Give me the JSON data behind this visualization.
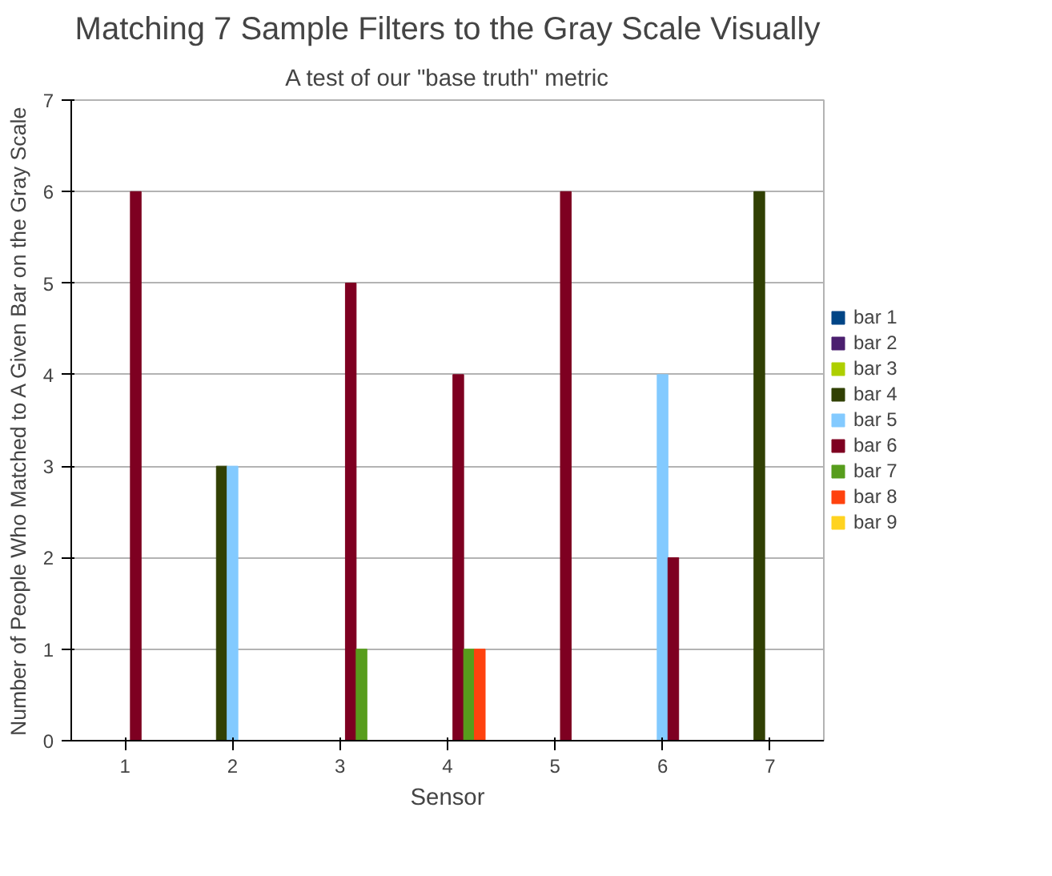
{
  "chart_data": {
    "type": "bar",
    "title": "Matching 7 Sample Filters to the Gray Scale Visually",
    "subtitle": "A test of our \"base truth\" metric",
    "xlabel": "Sensor",
    "ylabel": "Number of People Who Matched to A Given Bar on the Gray Scale",
    "categories": [
      "1",
      "2",
      "3",
      "4",
      "5",
      "6",
      "7"
    ],
    "series": [
      {
        "name": "bar 1",
        "color": "#004586",
        "values": [
          0,
          0,
          0,
          0,
          0,
          0,
          0
        ]
      },
      {
        "name": "bar 2",
        "color": "#4b1f6f",
        "values": [
          0,
          0,
          0,
          0,
          0,
          0,
          0
        ]
      },
      {
        "name": "bar 3",
        "color": "#aecf00",
        "values": [
          0,
          0,
          0,
          0,
          0,
          0,
          0
        ]
      },
      {
        "name": "bar 4",
        "color": "#314004",
        "values": [
          0,
          3,
          0,
          0,
          0,
          0,
          6
        ]
      },
      {
        "name": "bar 5",
        "color": "#83caff",
        "values": [
          0,
          3,
          0,
          0,
          0,
          4,
          0
        ]
      },
      {
        "name": "bar 6",
        "color": "#7e0021",
        "values": [
          6,
          0,
          5,
          4,
          6,
          2,
          0
        ]
      },
      {
        "name": "bar 7",
        "color": "#579d1c",
        "values": [
          0,
          0,
          1,
          1,
          0,
          0,
          0
        ]
      },
      {
        "name": "bar 8",
        "color": "#ff420e",
        "values": [
          0,
          0,
          0,
          1,
          0,
          0,
          0
        ]
      },
      {
        "name": "bar 9",
        "color": "#ffd320",
        "values": [
          0,
          0,
          0,
          0,
          0,
          0,
          0
        ]
      }
    ],
    "ylim": [
      0,
      7
    ],
    "yticks": [
      0,
      1,
      2,
      3,
      4,
      5,
      6,
      7
    ],
    "grid": "y",
    "legend": "right"
  }
}
